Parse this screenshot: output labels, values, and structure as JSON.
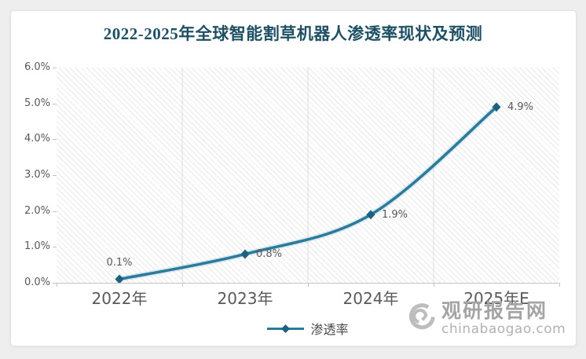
{
  "title": "2022-2025年全球智能割草机器人渗透率现状及预测",
  "chart_data": {
    "type": "line",
    "categories": [
      "2022年",
      "2023年",
      "2024年",
      "2025年E"
    ],
    "series": [
      {
        "name": "渗透率",
        "values": [
          0.1,
          0.8,
          1.9,
          4.9
        ],
        "point_labels": [
          "0.1%",
          "0.8%",
          "1.9%",
          "4.9%"
        ],
        "point_label_positions": [
          "top",
          "right",
          "right",
          "right"
        ]
      }
    ],
    "ylim": [
      0,
      6
    ],
    "y_tick_labels": [
      "0.0%",
      "1.0%",
      "2.0%",
      "3.0%",
      "4.0%",
      "5.0%",
      "6.0%"
    ],
    "grid": {
      "vertical_gridlines": true,
      "horizontal_gridlines": false
    },
    "plot_background": "diagonal-hatch",
    "legend": {
      "label": "渗透率",
      "position": "bottom-center",
      "marker": "line-diamond"
    }
  },
  "watermark": {
    "brand": "观研报告网",
    "domain": "chinabaogao.com",
    "logo": "swirl-icon"
  },
  "colors": {
    "line": "#2b7a9b",
    "line_glow": "#9cc6d8",
    "marker": "#1e607f",
    "title": "#1f4f63",
    "axis_label": "#595959",
    "point_label": "#595959",
    "legend_label": "#4a4a4a",
    "gridline": "#dcdcdc",
    "axis_line": "#c4c4c4",
    "hatch_line": "#e9e9e9",
    "watermark_text": "#a4a4a4",
    "watermark_domain": "#b2b2b2",
    "page_background": "#eeeeee",
    "card_background": "#ffffff"
  }
}
